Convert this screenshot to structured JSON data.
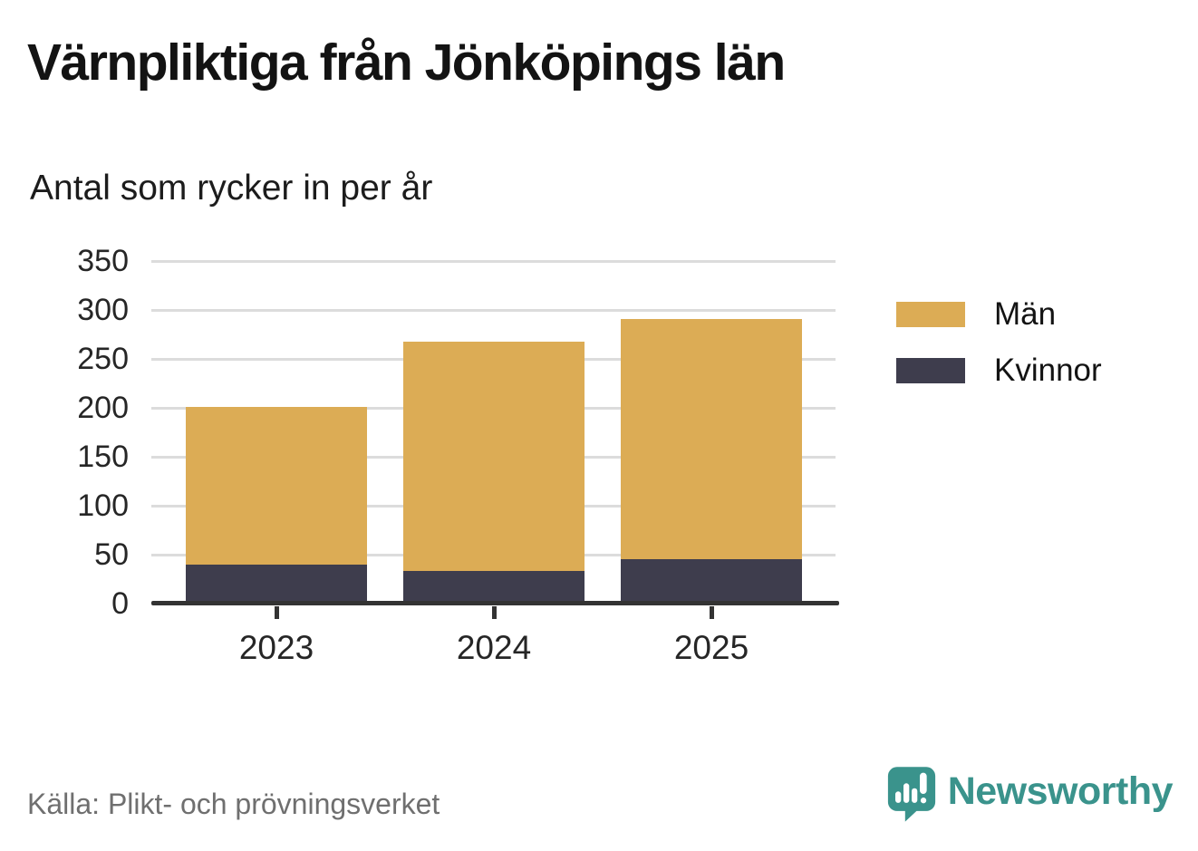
{
  "title": "Värnpliktiga från Jönköpings län",
  "subtitle": "Antal som rycker in per år",
  "source": "Källa: Plikt- och prövningsverket",
  "brand": {
    "name": "Newsworthy",
    "teal": "#3a938c",
    "icon": "speech-bubble-bar-chart-icon"
  },
  "colors": {
    "man": "#dcac55",
    "kvinnor": "#3e3d4d",
    "gridline": "#dcdcdc",
    "axis": "#333333",
    "source_text": "#6f6f6f"
  },
  "chart_data": {
    "type": "bar",
    "stacked": true,
    "title": "Värnpliktiga från Jönköpings län",
    "subtitle": "Antal som rycker in per år",
    "categories": [
      "2023",
      "2024",
      "2025"
    ],
    "series": [
      {
        "name": "Män",
        "color": "#dcac55",
        "values": [
          161,
          235,
          246
        ]
      },
      {
        "name": "Kvinnor",
        "color": "#3e3d4d",
        "values": [
          40,
          33,
          45
        ]
      }
    ],
    "totals": [
      201,
      268,
      291
    ],
    "xlabel": "",
    "ylabel": "",
    "ylim": [
      0,
      350
    ],
    "yticks": [
      0,
      50,
      100,
      150,
      200,
      250,
      300,
      350
    ],
    "grid": "horizontal",
    "legend_position": "right",
    "stack_order_bottom_to_top": [
      "Kvinnor",
      "Män"
    ]
  }
}
